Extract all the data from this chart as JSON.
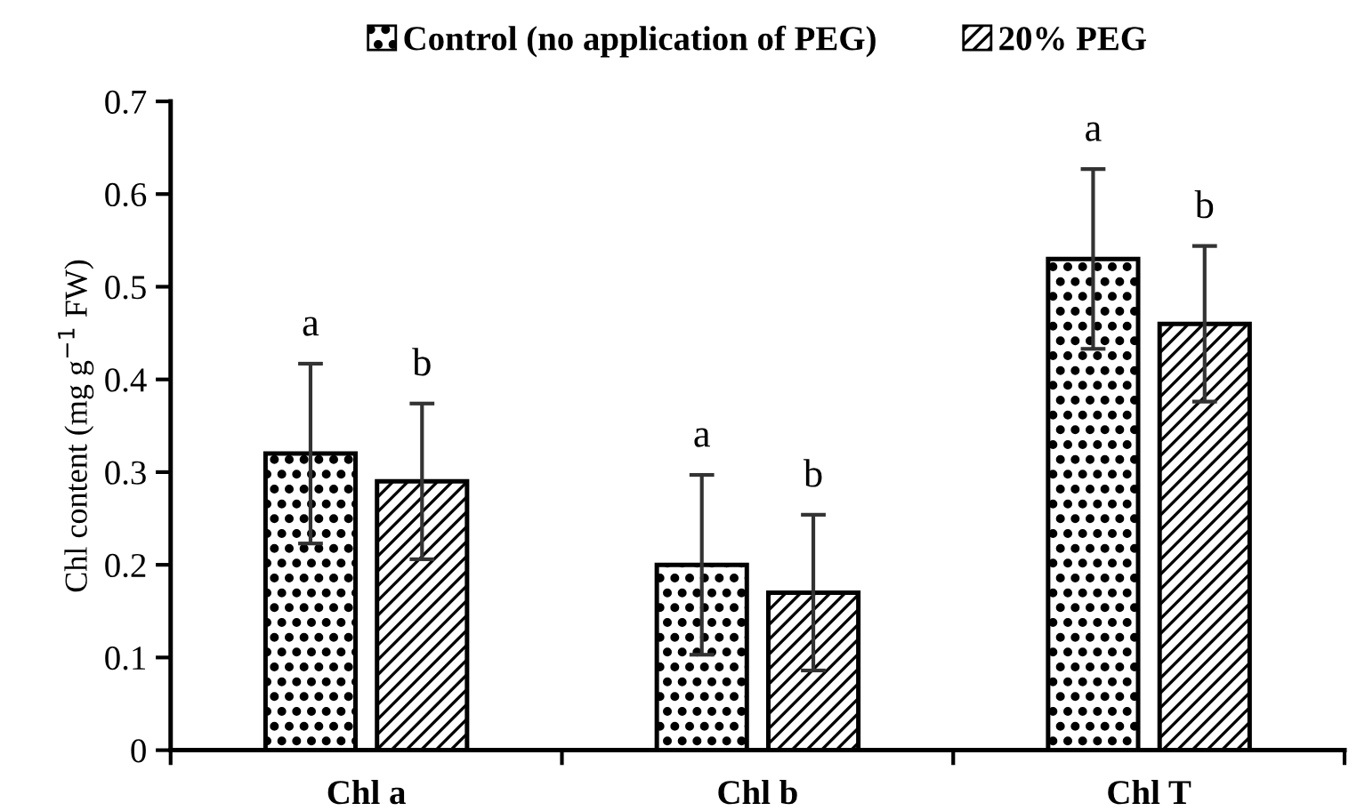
{
  "chart_data": {
    "type": "bar",
    "ylabel": "Chl content (mg g$^{−1}$ FW)",
    "categories": [
      "Chl a",
      "Chl b",
      "Chl T"
    ],
    "series": [
      {
        "name": "Control (no application of PEG)",
        "color": "#000000",
        "values": [
          0.32,
          0.2,
          0.53
        ],
        "errors": [
          0.097,
          0.097,
          0.097
        ]
      },
      {
        "name": "20% PEG",
        "color": "#000000",
        "values": [
          0.29,
          0.17,
          0.46
        ],
        "errors": [
          0.084,
          0.084,
          0.084
        ]
      }
    ],
    "ylim": [
      0,
      0.7
    ],
    "yticks": [
      0,
      0.1,
      0.2,
      0.3,
      0.4,
      0.5,
      0.6,
      0.7
    ],
    "annotations": [
      "a",
      "b",
      "a",
      "b",
      "a",
      "b"
    ],
    "legend": "top",
    "grid": false
  }
}
